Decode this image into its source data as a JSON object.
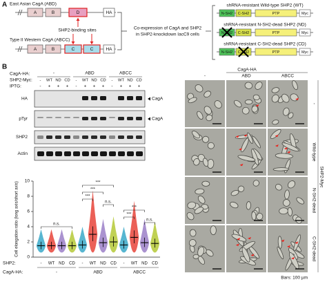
{
  "panel_a": {
    "label": "A",
    "east_asian": {
      "title": "East Asian CagA (ABD)",
      "segments": [
        "A",
        "B",
        "D",
        "HA"
      ]
    },
    "binding_sites": "SHP2-binding sites",
    "western": {
      "title": "Type II Western CagA (ABCC)",
      "segments": [
        "A",
        "B",
        "C",
        "C",
        "HA"
      ]
    },
    "coexpression": [
      "Co-expression of CagA and SHP2",
      "in SHP2-knockdown IacC9 cells"
    ],
    "constructs": [
      {
        "title": "shRNA-resistant Wild-type SHP2 (WT)",
        "domains": [
          "N-SH2",
          "C-SH2",
          "PTP",
          "Myc"
        ]
      },
      {
        "title": "shRNA-resistant N-SH2-dead SHP2 (ND)",
        "domains": [
          "N-SH2",
          "C-SH2",
          "PTP",
          "Myc"
        ]
      },
      {
        "title": "shRNA-resistant C-SH2-dead SHP2 (CD)",
        "domains": [
          "N-SH2",
          "C-SH2",
          "PTP",
          "Myc"
        ]
      }
    ]
  },
  "panel_b": {
    "label": "B",
    "blot": {
      "cagA_label": "CagA-HA:",
      "cagA_groups": [
        "-",
        "ABD",
        "ABCC"
      ],
      "shp2_label": "SHP2-Myc:",
      "shp2": [
        "-",
        "WT",
        "ND",
        "CD",
        "-",
        "WT",
        "ND",
        "CD",
        "-",
        "WT",
        "ND",
        "CD"
      ],
      "iptg_label": "IPTG:",
      "iptg": [
        "-",
        "+",
        "+",
        "+",
        "-",
        "+",
        "+",
        "+",
        "-",
        "+",
        "+",
        "+"
      ],
      "rows": [
        "HA",
        "pTyr",
        "SHP2",
        "Actin"
      ],
      "markers": [
        "CagA",
        "CagA"
      ]
    },
    "microscopy": {
      "column_title": "CagA-HA",
      "columns": [
        "-",
        "ABD",
        "ABCC"
      ],
      "row_title": "SHP2-Myc",
      "rows": [
        "-",
        "Wild-type",
        "N-SH2-dead",
        "C-SH2-dead"
      ],
      "scale": "Bars: 100 µm"
    }
  },
  "chart_data": {
    "type": "dot",
    "y_label": "Cell elongation ratio (long axis/short axis)",
    "ylim": [
      0,
      10
    ],
    "yticks": [
      0,
      2,
      4,
      6,
      8,
      10
    ],
    "category_label": "SHP2:",
    "categories": [
      "-",
      "WT",
      "ND",
      "CD",
      "-",
      "WT",
      "ND",
      "CD",
      "-",
      "WT",
      "ND",
      "CD"
    ],
    "group_label": "CagA-HA:",
    "groups": [
      "-",
      "ABD",
      "ABCC"
    ],
    "values": [
      1.5,
      1.5,
      1.5,
      1.5,
      1.6,
      3.0,
      1.9,
      2.0,
      1.6,
      2.6,
      1.9,
      1.8
    ],
    "colors": [
      "#3aa9c9",
      "#e8443a",
      "#9b7fc8",
      "#b5c936",
      "#3aa9c9",
      "#e8443a",
      "#9b7fc8",
      "#b5c936",
      "#3aa9c9",
      "#e8443a",
      "#9b7fc8",
      "#b5c936"
    ],
    "annotations": [
      "n.s.",
      "***",
      "***",
      "***",
      "n.s.",
      "***",
      "***",
      "n.s."
    ]
  }
}
